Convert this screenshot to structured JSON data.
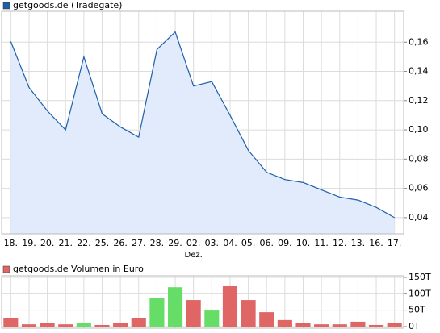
{
  "chart_data": [
    {
      "type": "area",
      "categories": [
        "18.",
        "19.",
        "20.",
        "21.",
        "22.",
        "25.",
        "26.",
        "27.",
        "28.",
        "29.",
        "02.",
        "03.",
        "04.",
        "05.",
        "06.",
        "09.",
        "10.",
        "11.",
        "12.",
        "13.",
        "16.",
        "17."
      ],
      "month_label": "Dez.",
      "series": [
        {
          "name": "getgoods.de (Tradegate)",
          "color": "#1f5fa8",
          "fill": "#e1ebfb",
          "values": [
            0.1605,
            0.129,
            0.113,
            0.1,
            0.15,
            0.111,
            0.102,
            0.095,
            0.155,
            0.167,
            0.13,
            0.133,
            0.11,
            0.086,
            0.071,
            0.066,
            0.064,
            0.059,
            0.054,
            0.052,
            0.047,
            0.04
          ]
        }
      ],
      "ylim": [
        0.03,
        0.18
      ],
      "yticks": [
        {
          "value": 0.04,
          "label": "0,04"
        },
        {
          "value": 0.06,
          "label": "0,06"
        },
        {
          "value": 0.08,
          "label": "0,08"
        },
        {
          "value": 0.1,
          "label": "0,10"
        },
        {
          "value": 0.12,
          "label": "0,12"
        },
        {
          "value": 0.14,
          "label": "0,14"
        },
        {
          "value": 0.16,
          "label": "0,16"
        }
      ],
      "grid": true
    },
    {
      "type": "bar",
      "series": [
        {
          "name": "getgoods.de Volumen in Euro",
          "color": "#e06666",
          "colors": [
            "#e06666",
            "#e06666",
            "#e06666",
            "#e06666",
            "#66dd66",
            "#e06666",
            "#e06666",
            "#e06666",
            "#66dd66",
            "#66dd66",
            "#e06666",
            "#66dd66",
            "#e06666",
            "#e06666",
            "#e06666",
            "#e06666",
            "#e06666",
            "#e06666",
            "#e06666",
            "#e06666",
            "#e06666",
            "#e06666"
          ],
          "values": [
            25000,
            7000,
            10000,
            7000,
            10000,
            5000,
            10000,
            27000,
            88000,
            120000,
            81000,
            49000,
            123000,
            81000,
            44000,
            20000,
            12000,
            7000,
            7000,
            15000,
            5000,
            10000
          ]
        }
      ],
      "ylim": [
        0,
        150000
      ],
      "yticks": [
        {
          "value": 0,
          "label": "0T"
        },
        {
          "value": 50000,
          "label": "50T"
        },
        {
          "value": 100000,
          "label": "100T"
        },
        {
          "value": 150000,
          "label": "150T"
        }
      ],
      "grid": true
    }
  ]
}
